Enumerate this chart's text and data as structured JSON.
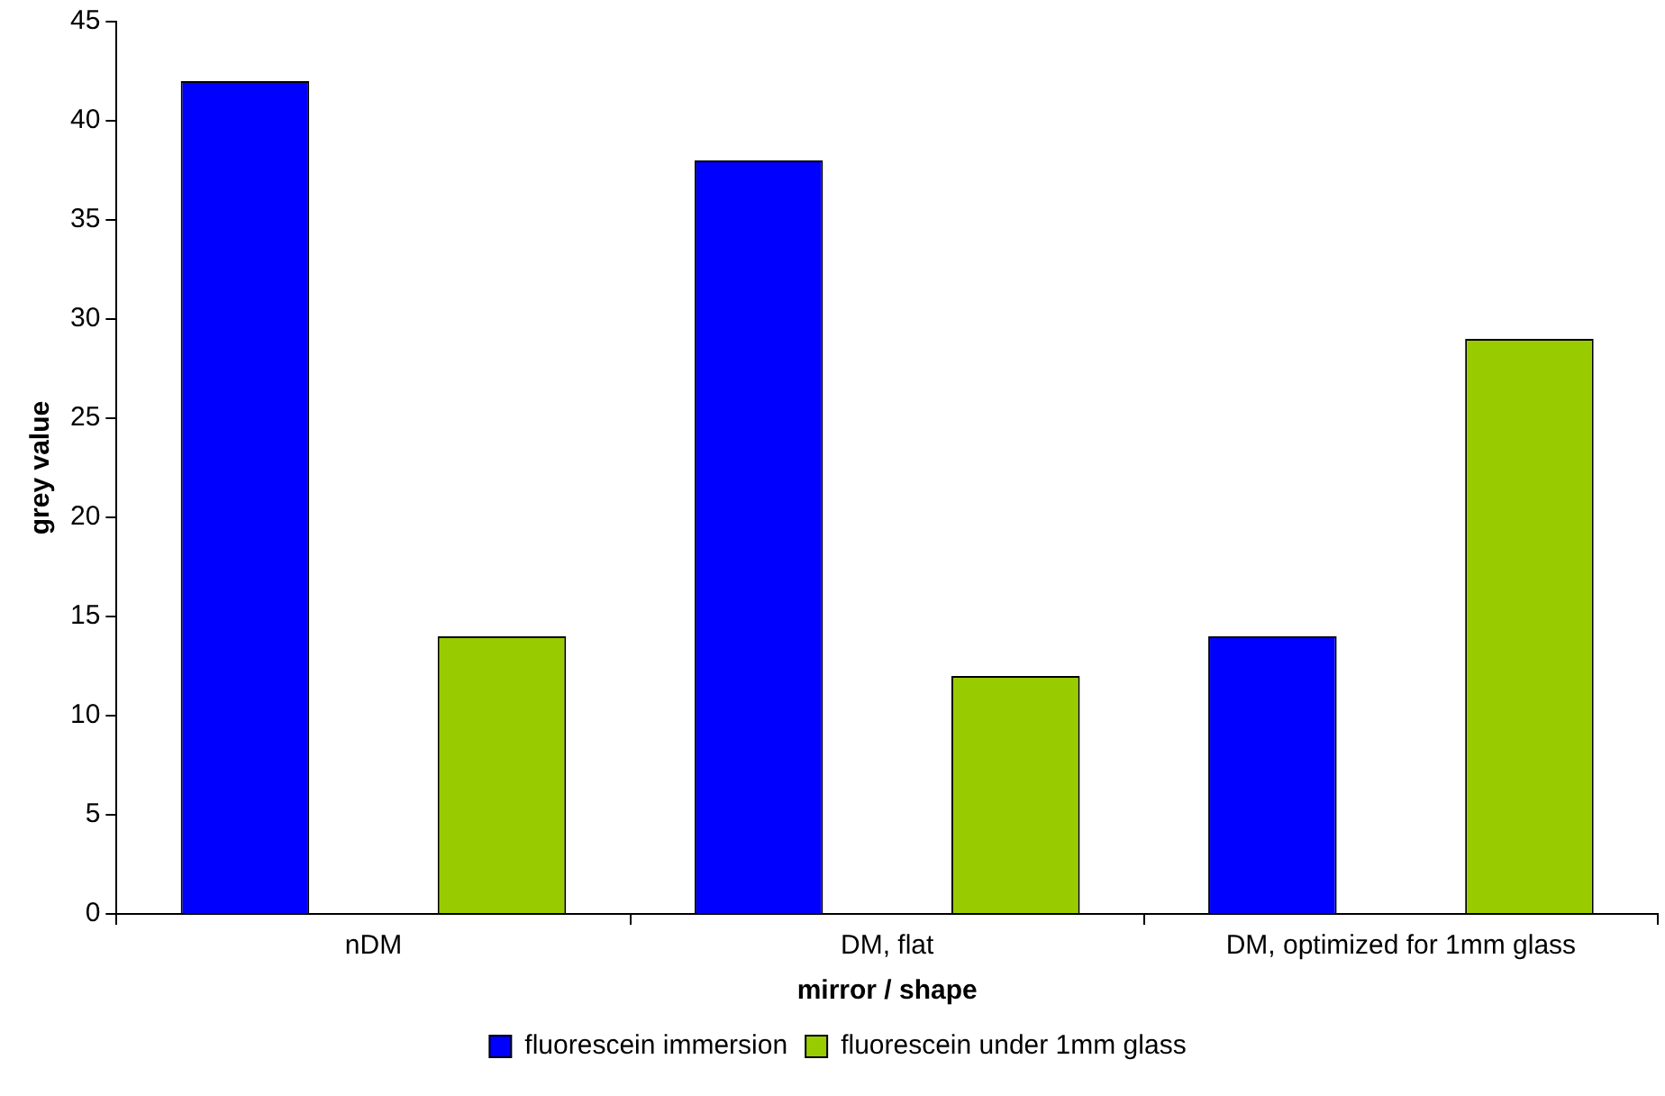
{
  "chart_data": {
    "type": "bar",
    "xlabel": "mirror / shape",
    "ylabel": "grey value",
    "categories": [
      "nDM",
      "DM, flat",
      "DM, optimized for 1mm glass"
    ],
    "series": [
      {
        "name": "fluorescein immersion",
        "color": "#0000ff",
        "values": [
          42,
          38,
          14
        ]
      },
      {
        "name": "fluorescein under 1mm glass",
        "color": "#99cc00",
        "values": [
          14,
          12,
          29
        ]
      }
    ],
    "ylim": [
      0,
      45
    ],
    "yticks": [
      0,
      5,
      10,
      15,
      20,
      25,
      30,
      35,
      40,
      45
    ],
    "grid": false,
    "legend": "bottom"
  }
}
